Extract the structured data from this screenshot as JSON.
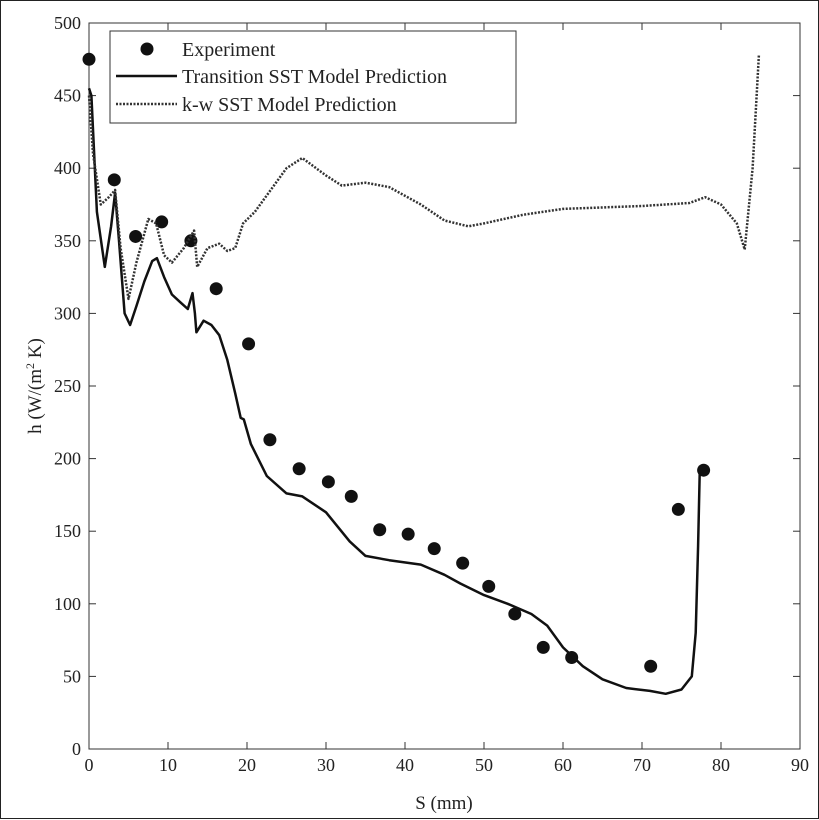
{
  "chart_data": {
    "type": "line",
    "title": "",
    "xlabel": "S (mm)",
    "ylabel": "h (W/(m",
    "ylabel_sup": "2",
    "ylabel_tail": " K)",
    "xlim": [
      0,
      90
    ],
    "ylim": [
      0,
      500
    ],
    "xticks": [
      0,
      10,
      20,
      30,
      40,
      50,
      60,
      70,
      80,
      90
    ],
    "yticks": [
      0,
      50,
      100,
      150,
      200,
      250,
      300,
      350,
      400,
      450,
      500
    ],
    "grid": false,
    "legend_position": "top-left",
    "series": [
      {
        "name": "Experiment",
        "style": "markers",
        "color": "#111111",
        "x": [
          0,
          3.2,
          5.9,
          9.2,
          12.9,
          16.1,
          20.2,
          22.9,
          26.6,
          30.3,
          33.2,
          36.8,
          40.4,
          43.7,
          47.3,
          50.6,
          53.9,
          57.5,
          61.1,
          71.1,
          74.6,
          77.8
        ],
        "y": [
          475,
          392,
          353,
          363,
          350,
          317,
          279,
          213,
          193,
          184,
          174,
          151,
          148,
          138,
          128,
          112,
          93,
          70,
          63,
          57,
          165,
          192
        ]
      },
      {
        "name": "Transition SST Model Prediction",
        "style": "solid",
        "color": "#111111",
        "x": [
          0,
          0.3,
          1,
          2,
          2.8,
          3.3,
          3.8,
          4.5,
          5.2,
          6,
          7,
          8,
          8.6,
          9.5,
          10.5,
          11.5,
          12.5,
          13.1,
          13.4,
          13.6,
          14.5,
          15.5,
          16.5,
          17.5,
          18.5,
          19.2,
          19.6,
          20.5,
          22.5,
          25,
          27,
          30,
          33,
          35,
          38,
          42,
          45,
          47,
          50,
          53,
          56,
          58,
          60,
          62.5,
          65,
          68,
          71,
          73,
          75,
          76.3,
          76.8,
          77.1,
          77.3
        ],
        "y": [
          455,
          450,
          370,
          332,
          360,
          383,
          350,
          300,
          292,
          305,
          322,
          336,
          338,
          325,
          313,
          308,
          303,
          314,
          300,
          287,
          295,
          292,
          285,
          268,
          245,
          228,
          227,
          210,
          188,
          176,
          174,
          163,
          143,
          133,
          130,
          127,
          120,
          114,
          106,
          100,
          93,
          85,
          70,
          57,
          48,
          42,
          40,
          38,
          41,
          50,
          80,
          140,
          190
        ]
      },
      {
        "name": "k-w SST Model Prediction",
        "style": "dotted",
        "color": "#333333",
        "x": [
          0,
          0.5,
          1.5,
          2.5,
          3.3,
          4,
          5,
          6,
          7.5,
          8.5,
          9.5,
          10.5,
          12,
          13.3,
          13.7,
          15,
          16.5,
          17.5,
          18.5,
          19.5,
          21,
          23,
          25,
          27,
          30,
          32,
          35,
          38,
          42,
          45,
          48,
          50,
          55,
          60,
          70,
          76,
          78,
          80,
          82,
          83,
          84,
          84.8
        ],
        "y": [
          450,
          410,
          375,
          380,
          385,
          345,
          310,
          335,
          365,
          362,
          340,
          335,
          345,
          357,
          332,
          345,
          348,
          343,
          345,
          362,
          370,
          385,
          400,
          407,
          395,
          388,
          390,
          387,
          375,
          364,
          360,
          362,
          368,
          372,
          374,
          376,
          380,
          375,
          362,
          344,
          400,
          478
        ]
      }
    ]
  }
}
